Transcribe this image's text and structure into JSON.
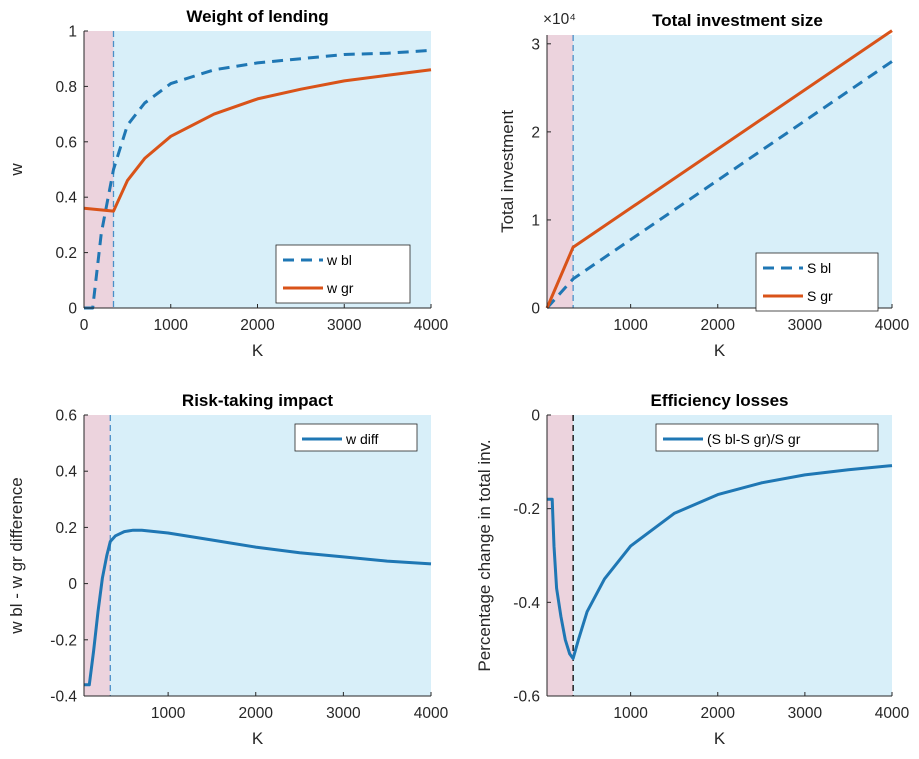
{
  "chart_data": [
    {
      "type": "line",
      "title": "Weight of lending",
      "xlabel": "K",
      "ylabel": "w",
      "xlim": [
        0,
        4000
      ],
      "ylim": [
        0,
        1
      ],
      "xticks": [
        "0",
        "1000",
        "2000",
        "3000",
        "4000"
      ],
      "yticks": [
        "0",
        "0.2",
        "0.4",
        "0.6",
        "0.8",
        "1"
      ],
      "exponent_label": "",
      "shaded_regions": [
        {
          "from": 0,
          "to": 340,
          "color": "#ecd3dd"
        },
        {
          "from": 340,
          "to": 4000,
          "color": "#d8eff9"
        }
      ],
      "vline": {
        "x": 340,
        "color": "#4a90c8",
        "style": "dashed"
      },
      "legend_position": "lower-right",
      "series": [
        {
          "name": "w bl",
          "color": "#1f77b4",
          "style": "dashed",
          "x": [
            0,
            100,
            200,
            340,
            500,
            700,
            1000,
            1500,
            2000,
            2500,
            3000,
            3500,
            4000
          ],
          "y": [
            0,
            0,
            0.27,
            0.5,
            0.66,
            0.74,
            0.81,
            0.86,
            0.885,
            0.9,
            0.915,
            0.92,
            0.93
          ]
        },
        {
          "name": "w gr",
          "color": "#d95319",
          "style": "solid",
          "x": [
            0,
            340,
            500,
            700,
            1000,
            1500,
            2000,
            2500,
            3000,
            3500,
            4000
          ],
          "y": [
            0.36,
            0.35,
            0.46,
            0.54,
            0.62,
            0.7,
            0.755,
            0.79,
            0.82,
            0.84,
            0.86
          ]
        }
      ]
    },
    {
      "type": "line",
      "title": "Total investment size",
      "xlabel": "K",
      "ylabel": "Total investment",
      "xlim": [
        0,
        4000
      ],
      "ylim": [
        0,
        31000
      ],
      "x_axis_start": 40,
      "xticks": [
        "1000",
        "2000",
        "3000",
        "4000"
      ],
      "yticks": [
        "0",
        "1",
        "2",
        "3"
      ],
      "exponent_label": "×10⁴",
      "shaded_regions": [
        {
          "from": 40,
          "to": 340,
          "color": "#ecd3dd"
        },
        {
          "from": 340,
          "to": 4000,
          "color": "#d8eff9"
        }
      ],
      "vline": {
        "x": 340,
        "color": "#4a90c8",
        "style": "dashed"
      },
      "legend_position": "lower-right",
      "series": [
        {
          "name": "S bl",
          "color": "#1f77b4",
          "style": "dashed",
          "x": [
            40,
            340,
            4000
          ],
          "y": [
            0,
            3300,
            28000
          ]
        },
        {
          "name": "S gr",
          "color": "#d95319",
          "style": "solid",
          "x": [
            40,
            340,
            4000
          ],
          "y": [
            0,
            6900,
            31500
          ]
        }
      ]
    },
    {
      "type": "line",
      "title": "Risk-taking impact",
      "xlabel": "K",
      "ylabel": "w bl - w gr difference",
      "xlim": [
        0,
        4000
      ],
      "ylim": [
        -0.4,
        0.6
      ],
      "x_axis_start": 40,
      "xticks": [
        "1000",
        "2000",
        "3000",
        "4000"
      ],
      "yticks": [
        "-0.4",
        "-0.2",
        "0",
        "0.2",
        "0.4",
        "0.6"
      ],
      "exponent_label": "",
      "shaded_regions": [
        {
          "from": 40,
          "to": 340,
          "color": "#ecd3dd"
        },
        {
          "from": 340,
          "to": 4000,
          "color": "#d8eff9"
        }
      ],
      "vline": {
        "x": 340,
        "color": "#4a90c8",
        "style": "dashed"
      },
      "legend_position": "upper-right",
      "series": [
        {
          "name": "w diff",
          "color": "#1f77b4",
          "style": "solid",
          "x": [
            40,
            100,
            150,
            200,
            250,
            300,
            340,
            400,
            500,
            600,
            700,
            1000,
            1500,
            2000,
            2500,
            3000,
            3500,
            4000
          ],
          "y": [
            -0.36,
            -0.36,
            -0.24,
            -0.1,
            0.02,
            0.1,
            0.15,
            0.17,
            0.185,
            0.19,
            0.19,
            0.18,
            0.155,
            0.13,
            0.11,
            0.095,
            0.08,
            0.07
          ]
        }
      ]
    },
    {
      "type": "line",
      "title": "Efficiency losses",
      "xlabel": "K",
      "ylabel": "Percentage change in total inv.",
      "xlim": [
        0,
        4000
      ],
      "ylim": [
        -0.6,
        0
      ],
      "x_axis_start": 40,
      "xticks": [
        "1000",
        "2000",
        "3000",
        "4000"
      ],
      "yticks": [
        "-0.6",
        "-0.4",
        "-0.2",
        "0"
      ],
      "exponent_label": "",
      "shaded_regions": [
        {
          "from": 40,
          "to": 340,
          "color": "#ecd3dd"
        },
        {
          "from": 340,
          "to": 4000,
          "color": "#d8eff9"
        }
      ],
      "vline": {
        "x": 340,
        "color": "#000000",
        "style": "dashed"
      },
      "legend_position": "upper-right",
      "series": [
        {
          "name": "(S bl-S gr)/S gr",
          "color": "#1f77b4",
          "style": "solid",
          "x": [
            40,
            100,
            120,
            150,
            200,
            250,
            300,
            340,
            400,
            500,
            700,
            1000,
            1500,
            2000,
            2500,
            3000,
            3500,
            4000
          ],
          "y": [
            -0.18,
            -0.18,
            -0.28,
            -0.37,
            -0.43,
            -0.48,
            -0.51,
            -0.52,
            -0.48,
            -0.42,
            -0.35,
            -0.28,
            -0.21,
            -0.17,
            -0.145,
            -0.128,
            -0.117,
            -0.108
          ]
        }
      ]
    }
  ]
}
